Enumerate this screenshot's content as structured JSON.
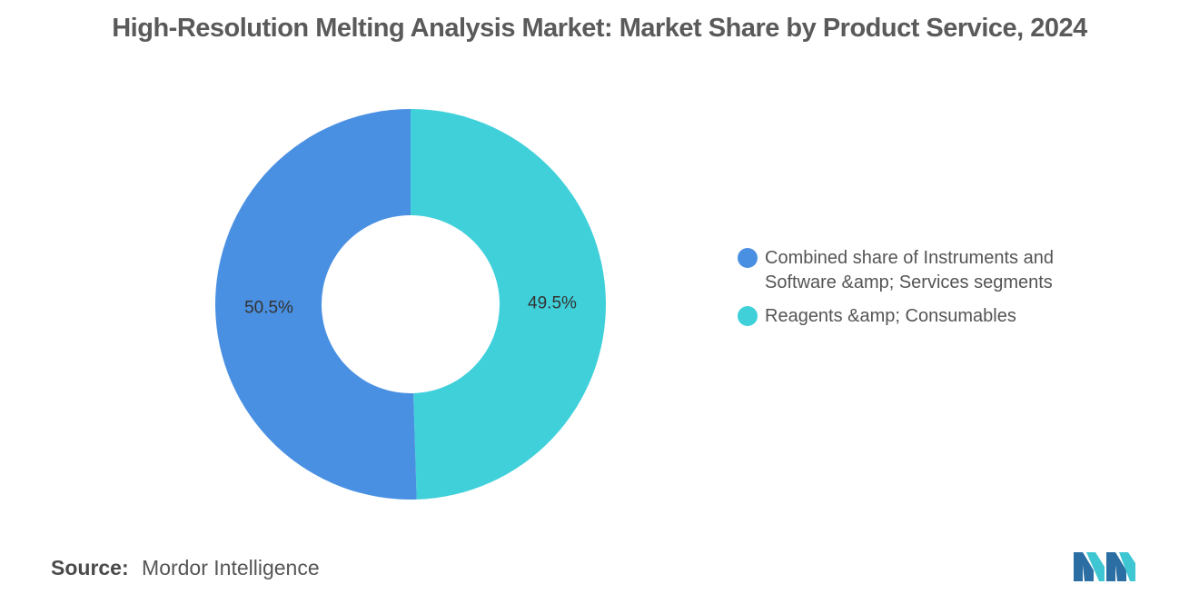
{
  "title": "High-Resolution Melting Analysis Market: Market Share by Product Service, 2024",
  "source": {
    "label": "Source:",
    "value": "Mordor Intelligence"
  },
  "logo": {
    "icon": "mordor-intelligence-logo",
    "colors": [
      "#2b6ea3",
      "#3ec7d3"
    ]
  },
  "chart_data": {
    "type": "pie",
    "style": "donut",
    "legend_position": "right",
    "slices": [
      {
        "name": "Combined share of Instruments and Software &amp; Services segments",
        "value": 50.5,
        "label": "50.5%",
        "color": "#4a90e2"
      },
      {
        "name": "Reagents &amp; Consumables",
        "value": 49.5,
        "label": "49.5%",
        "color": "#40d0da"
      }
    ]
  }
}
